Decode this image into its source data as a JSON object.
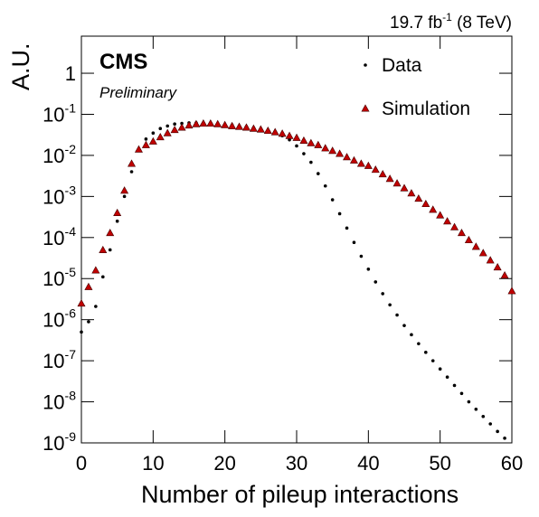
{
  "chart_data": {
    "type": "scatter",
    "title": "CMS",
    "subtitle": "Preliminary",
    "lumi": [
      "19.7 fb",
      "-1",
      " (8 TeV)"
    ],
    "x_label": "Number of pileup interactions",
    "y_label": "A.U.",
    "log_y": true,
    "legend": "top-right",
    "x": [
      0,
      1,
      2,
      3,
      4,
      5,
      6,
      7,
      8,
      9,
      10,
      11,
      12,
      13,
      14,
      15,
      16,
      17,
      18,
      19,
      20,
      21,
      22,
      23,
      24,
      25,
      26,
      27,
      28,
      29,
      30,
      31,
      32,
      33,
      34,
      35,
      36,
      37,
      38,
      39,
      40,
      41,
      42,
      43,
      44,
      45,
      46,
      47,
      48,
      49,
      50,
      51,
      52,
      53,
      54,
      55,
      56,
      57,
      58,
      59,
      60
    ],
    "series": [
      {
        "name": "Data",
        "color": "#000000",
        "marker": "dot",
        "values": [
          5e-07,
          8.9e-07,
          2.1e-06,
          1.1e-05,
          5e-05,
          0.00025,
          0.001,
          0.004,
          0.013,
          0.025,
          0.035,
          0.045,
          0.052,
          0.058,
          0.06,
          0.062,
          0.062,
          0.06,
          0.059,
          0.058,
          0.056,
          0.055,
          0.052,
          0.05,
          0.047,
          0.044,
          0.04,
          0.035,
          0.03,
          0.024,
          0.017,
          0.011,
          0.0068,
          0.0036,
          0.0018,
          0.00083,
          0.00038,
          0.00017,
          7.6e-05,
          3.5e-05,
          1.7e-05,
          8.3e-06,
          4.3e-06,
          2.3e-06,
          1.3e-06,
          7.2e-07,
          4.3e-07,
          2.6e-07,
          1.6e-07,
          1e-07,
          6.3e-08,
          4e-08,
          2.5e-08,
          1.6e-08,
          1e-08,
          6.6e-09,
          4.4e-09,
          2.9e-09,
          1.9e-09,
          1.3e-09,
          null
        ]
      },
      {
        "name": "Simulation",
        "color": "#c00000",
        "marker": "triangle",
        "values": [
          2.5e-06,
          6.3e-06,
          1.6e-05,
          5e-05,
          0.00013,
          0.0004,
          0.0014,
          0.0063,
          0.014,
          0.018,
          0.022,
          0.028,
          0.035,
          0.042,
          0.048,
          0.054,
          0.058,
          0.06,
          0.06,
          0.058,
          0.055,
          0.052,
          0.05,
          0.048,
          0.045,
          0.043,
          0.04,
          0.037,
          0.034,
          0.03,
          0.027,
          0.023,
          0.02,
          0.018,
          0.015,
          0.013,
          0.011,
          0.0091,
          0.0076,
          0.0063,
          0.0056,
          0.0045,
          0.0035,
          0.0027,
          0.0021,
          0.0016,
          0.0012,
          0.00089,
          0.00066,
          0.00048,
          0.00035,
          0.00025,
          0.00018,
          0.00013,
          8.7e-05,
          6e-05,
          4.2e-05,
          2.8e-05,
          1.9e-05,
          1.2e-05,
          5e-06
        ]
      }
    ],
    "xlim": [
      0,
      60
    ],
    "xticks": [
      0,
      10,
      20,
      30,
      40,
      50,
      60
    ],
    "ylim": [
      1e-09,
      8
    ],
    "yticks": [
      {
        "value": 1e-09,
        "label": "10-9"
      },
      {
        "value": 1e-08,
        "label": "10-8"
      },
      {
        "value": 1e-07,
        "label": "10-7"
      },
      {
        "value": 1e-06,
        "label": "10-6"
      },
      {
        "value": 1e-05,
        "label": "10-5"
      },
      {
        "value": 0.0001,
        "label": "10-4"
      },
      {
        "value": 0.001,
        "label": "10-3"
      },
      {
        "value": 0.01,
        "label": "10-2"
      },
      {
        "value": 0.1,
        "label": "10-1"
      },
      1
    ]
  }
}
